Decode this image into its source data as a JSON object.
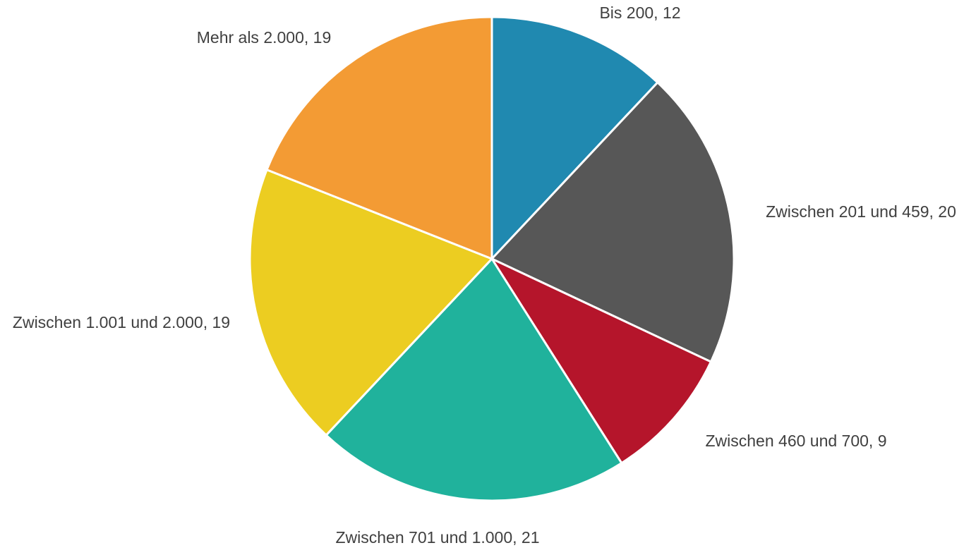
{
  "chart_data": {
    "type": "pie",
    "labels": [
      "Bis 200, 12",
      "Zwischen 201 und 459, 20",
      "Zwischen 460 und 700, 9",
      "Zwischen 701 und 1.000, 21",
      "Zwischen 1.001 und 2.000, 19",
      "Mehr als 2.000, 19"
    ],
    "values": [
      12,
      20,
      9,
      21,
      19,
      19
    ],
    "colors": [
      "#2089b0",
      "#575757",
      "#b5152b",
      "#20b29c",
      "#eccd21",
      "#f39b34"
    ]
  }
}
